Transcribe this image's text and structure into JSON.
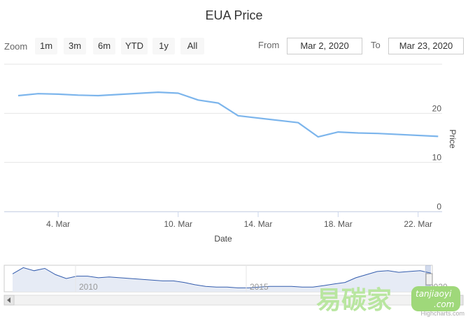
{
  "chart_data": {
    "type": "line",
    "title": "EUA Price",
    "xlabel": "Date",
    "ylabel": "Price",
    "ylim": [
      0,
      30
    ],
    "y_ticks": [
      "0",
      "10",
      "20"
    ],
    "x_tick_labels": [
      "4. Mar",
      "10. Mar",
      "14. Mar",
      "18. Mar",
      "22. Mar"
    ],
    "series": [
      {
        "name": "",
        "x": [
          "Mar 2, 2020",
          "Mar 3, 2020",
          "Mar 4, 2020",
          "Mar 5, 2020",
          "Mar 6, 2020",
          "Mar 9, 2020",
          "Mar 10, 2020",
          "Mar 11, 2020",
          "Mar 12, 2020",
          "Mar 13, 2020",
          "Mar 16, 2020",
          "Mar 17, 2020",
          "Mar 18, 2020",
          "Mar 19, 2020",
          "Mar 20, 2020",
          "Mar 23, 2020"
        ],
        "values": [
          23.6,
          24.0,
          23.9,
          23.7,
          23.6,
          24.3,
          24.1,
          22.7,
          22.1,
          19.5,
          18.1,
          15.2,
          16.2,
          16.0,
          15.9,
          15.3
        ],
        "color": "#7cb5ec"
      }
    ],
    "navigator": {
      "x_labels": [
        "2010",
        "2015",
        "2020"
      ],
      "values": [
        23,
        31,
        27,
        30,
        22,
        17,
        20,
        20,
        18,
        19,
        18,
        17,
        16,
        15,
        14,
        14,
        12,
        9,
        7,
        6,
        6,
        5,
        5,
        6,
        7,
        7,
        7,
        6,
        6,
        8,
        10,
        12,
        18,
        22,
        26,
        27,
        25,
        26,
        27,
        24
      ],
      "series_color": "#335cad",
      "fill_color": "#e6ebf5"
    },
    "grid": true,
    "legend": "none"
  },
  "range_selector": {
    "zoom_label": "Zoom",
    "buttons": [
      "1m",
      "3m",
      "6m",
      "YTD",
      "1y",
      "All"
    ],
    "from_label": "From",
    "from_value": "Mar 2, 2020",
    "to_label": "To",
    "to_value": "Mar 23, 2020"
  },
  "credits": "Highcharts.com",
  "watermark": {
    "chinese": "易碳家",
    "url": "tanjiaoyi",
    "dotcom": ".com"
  }
}
